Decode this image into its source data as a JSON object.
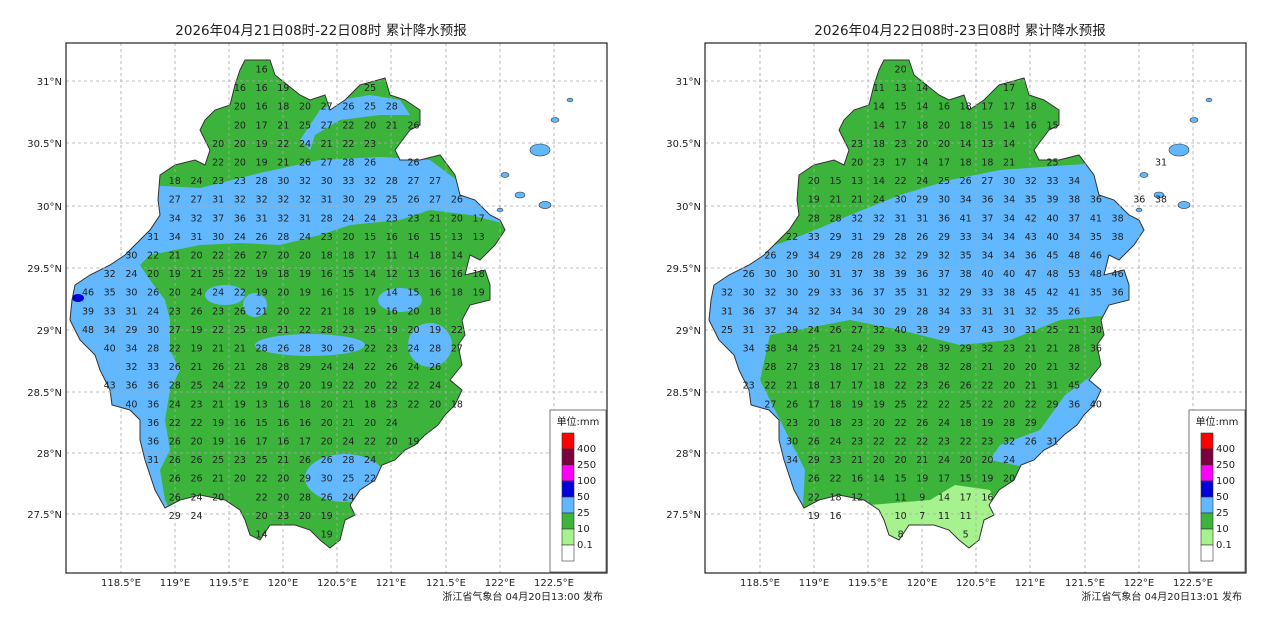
{
  "panels": [
    {
      "title": "2026年04月21日08时-22日08时 累计降水预报",
      "footer": "浙江省气象台 04月20日13:00 发布",
      "grid_rows": [
        {
          "start": 8,
          "values": [
            "16"
          ]
        },
        {
          "start": 7,
          "values": [
            "16",
            "16",
            "19",
            null,
            null,
            null,
            "25"
          ]
        },
        {
          "start": 7,
          "values": [
            "20",
            "16",
            "18",
            "20",
            "27",
            "26",
            "25",
            "28"
          ]
        },
        {
          "start": 7,
          "values": [
            "20",
            "17",
            "21",
            "25",
            "27",
            "22",
            "20",
            "21",
            "26"
          ]
        },
        {
          "start": 6,
          "values": [
            "20",
            "20",
            "19",
            "22",
            "24",
            "21",
            "22",
            "23"
          ]
        },
        {
          "start": 6,
          "values": [
            "22",
            "20",
            "19",
            "21",
            "26",
            "27",
            "28",
            "26",
            null,
            "26"
          ]
        },
        {
          "start": 4,
          "values": [
            "18",
            "24",
            "23",
            "23",
            "28",
            "30",
            "32",
            "30",
            "33",
            "32",
            "28",
            "27",
            "27"
          ]
        },
        {
          "start": 4,
          "values": [
            "27",
            "27",
            "31",
            "32",
            "32",
            "32",
            "32",
            "31",
            "30",
            "29",
            "25",
            "26",
            "27",
            "26"
          ]
        },
        {
          "start": 4,
          "values": [
            "34",
            "32",
            "37",
            "36",
            "31",
            "32",
            "31",
            "28",
            "24",
            "24",
            "23",
            "23",
            "21",
            "20",
            "17"
          ]
        },
        {
          "start": 3,
          "values": [
            "31",
            "34",
            "31",
            "30",
            "24",
            "26",
            "28",
            "24",
            "23",
            "20",
            "15",
            "16",
            "16",
            "15",
            "13",
            "13"
          ]
        },
        {
          "start": 2,
          "values": [
            "30",
            "22",
            "21",
            "20",
            "22",
            "26",
            "27",
            "20",
            "20",
            "18",
            "18",
            "17",
            "11",
            "14",
            "18",
            "14"
          ]
        },
        {
          "start": 1,
          "values": [
            "32",
            "24",
            "20",
            "19",
            "21",
            "25",
            "22",
            "19",
            "18",
            "19",
            "16",
            "15",
            "14",
            "12",
            "13",
            "16",
            "16",
            "18"
          ]
        },
        {
          "start": 0,
          "values": [
            "46",
            "35",
            "30",
            "26",
            "20",
            "24",
            "24",
            "22",
            "19",
            "20",
            "19",
            "16",
            "15",
            "17",
            "14",
            "15",
            "16",
            "18",
            "19"
          ]
        },
        {
          "start": 0,
          "values": [
            "39",
            "33",
            "31",
            "24",
            "23",
            "26",
            "23",
            "26",
            "21",
            "20",
            "22",
            "21",
            "18",
            "19",
            "16",
            "20",
            "18"
          ]
        },
        {
          "start": 0,
          "values": [
            "48",
            "34",
            "29",
            "30",
            "27",
            "19",
            "22",
            "25",
            "18",
            "21",
            "22",
            "28",
            "23",
            "25",
            "19",
            "20",
            "19",
            "22"
          ]
        },
        {
          "start": 1,
          "values": [
            "40",
            "34",
            "28",
            "22",
            "19",
            "21",
            "21",
            "28",
            "26",
            "28",
            "30",
            "26",
            "22",
            "23",
            "24",
            "28",
            "27"
          ]
        },
        {
          "start": 2,
          "values": [
            "32",
            "33",
            "26",
            "21",
            "26",
            "21",
            "28",
            "28",
            "29",
            "24",
            "24",
            "22",
            "26",
            "24",
            "26"
          ]
        },
        {
          "start": 1,
          "values": [
            "43",
            "36",
            "36",
            "28",
            "25",
            "24",
            "22",
            "19",
            "20",
            "20",
            "19",
            "22",
            "20",
            "22",
            "22",
            "24"
          ]
        },
        {
          "start": 2,
          "values": [
            "40",
            "36",
            "24",
            "23",
            "21",
            "19",
            "13",
            "16",
            "18",
            "20",
            "21",
            "18",
            "23",
            "22",
            "20",
            "18"
          ]
        },
        {
          "start": 3,
          "values": [
            "36",
            "22",
            "22",
            "19",
            "16",
            "15",
            "16",
            "16",
            "20",
            "21",
            "20",
            "24"
          ]
        },
        {
          "start": 3,
          "values": [
            "36",
            "26",
            "20",
            "19",
            "16",
            "17",
            "16",
            "17",
            "20",
            "24",
            "22",
            "20",
            "19"
          ]
        },
        {
          "start": 3,
          "values": [
            "31",
            "26",
            "26",
            "25",
            "23",
            "25",
            "21",
            "26",
            "26",
            "28",
            "24"
          ]
        },
        {
          "start": 4,
          "values": [
            "26",
            "26",
            "21",
            "20",
            "22",
            "20",
            "29",
            "30",
            "25",
            "22"
          ]
        },
        {
          "start": 4,
          "values": [
            "26",
            "24",
            "20",
            null,
            "22",
            "20",
            "28",
            "26",
            "24"
          ]
        },
        {
          "start": 4,
          "values": [
            "29",
            "24",
            null,
            null,
            "20",
            "23",
            "20",
            "19"
          ]
        },
        {
          "start": 8,
          "values": [
            "14",
            null,
            null,
            "19"
          ]
        }
      ]
    },
    {
      "title": "2026年04月22日08时-23日08时 累计降水预报",
      "footer": "浙江省气象台 04月20日13:01 发布",
      "grid_rows": [
        {
          "start": 8,
          "values": [
            "20"
          ]
        },
        {
          "start": 7,
          "values": [
            "11",
            "13",
            "14",
            null,
            null,
            null,
            "17"
          ]
        },
        {
          "start": 7,
          "values": [
            "14",
            "15",
            "14",
            "16",
            "18",
            "17",
            "17",
            "18"
          ]
        },
        {
          "start": 7,
          "values": [
            "14",
            "17",
            "18",
            "20",
            "18",
            "15",
            "14",
            "16",
            "15"
          ]
        },
        {
          "start": 6,
          "values": [
            "23",
            "18",
            "23",
            "20",
            "20",
            "14",
            "13",
            "14"
          ]
        },
        {
          "start": 6,
          "values": [
            "20",
            "23",
            "17",
            "14",
            "17",
            "18",
            "18",
            "21",
            null,
            "25",
            null,
            null,
            null,
            null,
            "31"
          ]
        },
        {
          "start": 4,
          "values": [
            "20",
            "15",
            "13",
            "14",
            "22",
            "24",
            "25",
            "26",
            "27",
            "30",
            "32",
            "33",
            "34"
          ]
        },
        {
          "start": 4,
          "values": [
            "19",
            "21",
            "21",
            "24",
            "30",
            "29",
            "30",
            "34",
            "36",
            "34",
            "35",
            "39",
            "38",
            "36",
            null,
            "36",
            "38"
          ]
        },
        {
          "start": 4,
          "values": [
            "28",
            "28",
            "32",
            "32",
            "31",
            "31",
            "36",
            "41",
            "37",
            "34",
            "42",
            "40",
            "37",
            "41",
            "38"
          ]
        },
        {
          "start": 3,
          "values": [
            "22",
            "33",
            "29",
            "31",
            "29",
            "28",
            "26",
            "29",
            "33",
            "34",
            "34",
            "43",
            "40",
            "34",
            "35",
            "38"
          ]
        },
        {
          "start": 2,
          "values": [
            "26",
            "29",
            "34",
            "29",
            "28",
            "28",
            "32",
            "29",
            "32",
            "35",
            "34",
            "34",
            "36",
            "45",
            "48",
            "46"
          ]
        },
        {
          "start": 1,
          "values": [
            "26",
            "30",
            "30",
            "30",
            "31",
            "37",
            "38",
            "39",
            "36",
            "37",
            "38",
            "40",
            "40",
            "47",
            "48",
            "53",
            "48",
            "46"
          ]
        },
        {
          "start": 0,
          "values": [
            "32",
            "30",
            "32",
            "30",
            "29",
            "33",
            "36",
            "37",
            "35",
            "31",
            "32",
            "29",
            "33",
            "38",
            "45",
            "42",
            "41",
            "35",
            "36"
          ]
        },
        {
          "start": 0,
          "values": [
            "31",
            "36",
            "37",
            "34",
            "32",
            "34",
            "34",
            "30",
            "29",
            "28",
            "34",
            "33",
            "31",
            "31",
            "32",
            "35",
            "26"
          ]
        },
        {
          "start": 0,
          "values": [
            "25",
            "31",
            "32",
            "29",
            "24",
            "26",
            "27",
            "32",
            "40",
            "33",
            "29",
            "37",
            "43",
            "30",
            "31",
            "25",
            "21",
            "30"
          ]
        },
        {
          "start": 1,
          "values": [
            "34",
            "38",
            "34",
            "25",
            "21",
            "24",
            "29",
            "33",
            "42",
            "39",
            "29",
            "32",
            "23",
            "21",
            "21",
            "28",
            "36"
          ]
        },
        {
          "start": 2,
          "values": [
            "28",
            "27",
            "23",
            "18",
            "17",
            "21",
            "22",
            "28",
            "32",
            "28",
            "21",
            "20",
            "20",
            "21",
            "32"
          ]
        },
        {
          "start": 1,
          "values": [
            "23",
            "22",
            "21",
            "18",
            "17",
            "17",
            "18",
            "22",
            "23",
            "26",
            "26",
            "22",
            "20",
            "21",
            "31",
            "45"
          ]
        },
        {
          "start": 2,
          "values": [
            "27",
            "26",
            "17",
            "18",
            "19",
            "19",
            "25",
            "22",
            "22",
            "25",
            "22",
            "20",
            "22",
            "29",
            "36",
            "40"
          ]
        },
        {
          "start": 3,
          "values": [
            "23",
            "20",
            "18",
            "23",
            "20",
            "22",
            "26",
            "24",
            "18",
            "19",
            "28",
            "29"
          ]
        },
        {
          "start": 3,
          "values": [
            "30",
            "26",
            "24",
            "23",
            "22",
            "22",
            "22",
            "23",
            "22",
            "23",
            "32",
            "26",
            "31"
          ]
        },
        {
          "start": 3,
          "values": [
            "34",
            "29",
            "23",
            "21",
            "20",
            "20",
            "21",
            "24",
            "20",
            "20",
            "24"
          ]
        },
        {
          "start": 4,
          "values": [
            "26",
            "22",
            "16",
            "14",
            "15",
            "19",
            "17",
            "15",
            "19",
            "20"
          ]
        },
        {
          "start": 4,
          "values": [
            "22",
            "18",
            "12",
            null,
            "11",
            "9",
            "14",
            "17",
            "16"
          ]
        },
        {
          "start": 4,
          "values": [
            "19",
            "16",
            null,
            null,
            "10",
            "7",
            "11",
            "11"
          ]
        },
        {
          "start": 8,
          "values": [
            "8",
            null,
            null,
            "5"
          ]
        }
      ]
    }
  ],
  "axes": {
    "lat_labels": [
      "31°N",
      "30.5°N",
      "30°N",
      "29.5°N",
      "29°N",
      "28.5°N",
      "28°N",
      "27.5°N"
    ],
    "lon_labels": [
      "118.5°E",
      "119°E",
      "119.5°E",
      "120°E",
      "120.5°E",
      "121°E",
      "121.5°E",
      "122°E",
      "122.5°E"
    ]
  },
  "legend": {
    "unit": "单位:mm",
    "items": [
      {
        "label": "400",
        "color": "#ff0000"
      },
      {
        "label": "250",
        "color": "#7a0040"
      },
      {
        "label": "100",
        "color": "#ff00ff"
      },
      {
        "label": "50",
        "color": "#0000dd"
      },
      {
        "label": "25",
        "color": "#61b8ff"
      },
      {
        "label": "10",
        "color": "#3cb43c"
      },
      {
        "label": "0.1",
        "color": "#a6f28f"
      },
      {
        "label": "",
        "color": "#ffffff"
      }
    ]
  },
  "colors": {
    "green": "#3cb43c",
    "blue": "#61b8ff",
    "lightgreen": "#a6f28f",
    "darkblue": "#0000dd"
  }
}
